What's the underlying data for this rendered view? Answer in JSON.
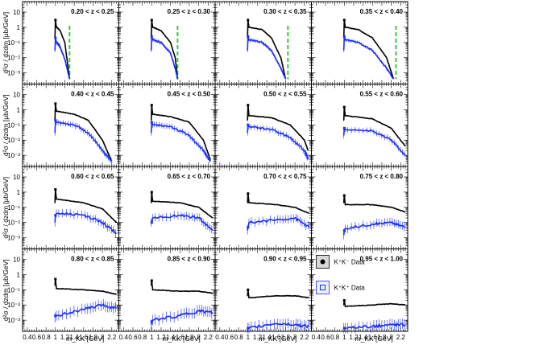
{
  "chart_data": {
    "type": "line",
    "layout": {
      "rows": 4,
      "cols": 4
    },
    "ylabel": "d²σ / dzdm [μb/GeV]",
    "xlabel": "m_KK [GeV]",
    "x_ticks": [
      "0.4",
      "0.6",
      "0.8",
      "1",
      "1.2",
      "1.4",
      "1.6",
      "1.8",
      "2",
      "2.2"
    ],
    "xlim": [
      0.3,
      2.35
    ],
    "y_scale": "log",
    "ylim": [
      0.0003,
      30
    ],
    "y_ticks": [
      "10⁻³",
      "10⁻²",
      "10⁻¹",
      "1",
      "10"
    ],
    "legend": {
      "position": "bottom-right panel",
      "entries": [
        {
          "label": "K⁺K⁻ Data",
          "color": "#000000",
          "marker": "circle"
        },
        {
          "label": "K⁺K⁺ Data",
          "color": "#1a2cff",
          "marker": "square"
        }
      ]
    },
    "panels": [
      {
        "z": "0.20 < z < 0.25",
        "cut": 1.3,
        "end": 1.3,
        "series": [
          {
            "name": "K⁺K⁻ Data",
            "color": "#000000",
            "x": [
              0.99,
              1.0,
              1.02,
              1.03,
              1.1,
              1.2,
              1.3
            ],
            "y": [
              0.2,
              3.0,
              1.0,
              1.0,
              0.6,
              0.1,
              0.0004
            ]
          },
          {
            "name": "K⁺K⁺ Data",
            "color": "#1a2cff",
            "x": [
              0.99,
              1.0,
              1.02,
              1.03,
              1.1,
              1.2,
              1.3
            ],
            "y": [
              0.03,
              0.2,
              0.1,
              0.1,
              0.05,
              0.008,
              0.0004
            ]
          }
        ]
      },
      {
        "z": "0.25 < z < 0.30",
        "cut": 1.55,
        "end": 1.55,
        "series": [
          {
            "name": "K⁺K⁻ Data",
            "color": "#000000",
            "x": [
              0.99,
              1.0,
              1.02,
              1.03,
              1.2,
              1.4,
              1.5,
              1.55
            ],
            "y": [
              0.2,
              3.0,
              1.0,
              1.0,
              0.6,
              0.1,
              0.01,
              0.0004
            ]
          },
          {
            "name": "K⁺K⁺ Data",
            "color": "#1a2cff",
            "x": [
              0.99,
              1.0,
              1.02,
              1.03,
              1.2,
              1.4,
              1.5,
              1.55
            ],
            "y": [
              0.03,
              0.25,
              0.15,
              0.15,
              0.1,
              0.02,
              0.002,
              0.0004
            ]
          }
        ]
      },
      {
        "z": "0.30 < z < 0.35",
        "cut": 1.85,
        "end": 1.8,
        "series": [
          {
            "name": "K⁺K⁻ Data",
            "color": "#000000",
            "x": [
              0.99,
              1.0,
              1.02,
              1.03,
              1.3,
              1.5,
              1.7,
              1.8
            ],
            "y": [
              0.2,
              3.0,
              1.0,
              1.0,
              0.7,
              0.2,
              0.01,
              0.0004
            ]
          },
          {
            "name": "K⁺K⁺ Data",
            "color": "#1a2cff",
            "x": [
              0.99,
              1.0,
              1.02,
              1.03,
              1.3,
              1.5,
              1.7,
              1.8
            ],
            "y": [
              0.03,
              0.25,
              0.15,
              0.15,
              0.1,
              0.03,
              0.002,
              0.0004
            ]
          }
        ]
      },
      {
        "z": "0.35 < z < 0.40",
        "cut": 2.1,
        "end": 2.05,
        "series": [
          {
            "name": "K⁺K⁻ Data",
            "color": "#000000",
            "x": [
              0.99,
              1.0,
              1.02,
              1.03,
              1.3,
              1.6,
              1.9,
              2.05
            ],
            "y": [
              0.2,
              3.0,
              1.0,
              1.0,
              0.7,
              0.2,
              0.01,
              0.0004
            ]
          },
          {
            "name": "K⁺K⁺ Data",
            "color": "#1a2cff",
            "x": [
              0.99,
              1.0,
              1.02,
              1.03,
              1.3,
              1.6,
              1.9,
              2.05
            ],
            "y": [
              0.03,
              0.25,
              0.15,
              0.15,
              0.1,
              0.03,
              0.002,
              0.0004
            ]
          }
        ]
      },
      {
        "z": "0.40 < z < 0.45",
        "end": 2.2,
        "series": [
          {
            "name": "K⁺K⁻ Data",
            "color": "#000000",
            "x": [
              0.99,
              1.0,
              1.02,
              1.03,
              1.4,
              1.7,
              2.0,
              2.2
            ],
            "y": [
              0.2,
              2.5,
              0.8,
              0.8,
              0.5,
              0.2,
              0.01,
              0.0004
            ]
          },
          {
            "name": "K⁺K⁺ Data",
            "color": "#1a2cff",
            "x": [
              0.99,
              1.0,
              1.02,
              1.03,
              1.4,
              1.7,
              2.0,
              2.2
            ],
            "y": [
              0.03,
              0.2,
              0.15,
              0.15,
              0.1,
              0.03,
              0.002,
              0.0004
            ]
          }
        ]
      },
      {
        "z": "0.45 < z < 0.50",
        "end": 2.25,
        "series": [
          {
            "name": "K⁺K⁻ Data",
            "color": "#000000",
            "x": [
              0.99,
              1.0,
              1.02,
              1.03,
              1.4,
              1.8,
              2.1,
              2.25
            ],
            "y": [
              0.2,
              2.0,
              0.5,
              0.5,
              0.35,
              0.15,
              0.01,
              0.0005
            ]
          },
          {
            "name": "K⁺K⁺ Data",
            "color": "#1a2cff",
            "x": [
              0.99,
              1.0,
              1.02,
              1.03,
              1.4,
              1.8,
              2.1,
              2.25
            ],
            "y": [
              0.03,
              0.15,
              0.1,
              0.1,
              0.08,
              0.02,
              0.002,
              0.0004
            ]
          }
        ]
      },
      {
        "z": "0.50 < z < 0.55",
        "end": 2.28,
        "series": [
          {
            "name": "K⁺K⁻ Data",
            "color": "#000000",
            "x": [
              0.99,
              1.0,
              1.02,
              1.03,
              1.5,
              1.9,
              2.2,
              2.28
            ],
            "y": [
              0.2,
              2.0,
              0.4,
              0.4,
              0.3,
              0.1,
              0.01,
              0.002
            ]
          },
          {
            "name": "K⁺K⁺ Data",
            "color": "#1a2cff",
            "x": [
              0.99,
              1.0,
              1.02,
              1.03,
              1.5,
              1.9,
              2.2,
              2.28
            ],
            "y": [
              0.03,
              0.1,
              0.08,
              0.08,
              0.05,
              0.015,
              0.002,
              0.0006
            ]
          }
        ]
      },
      {
        "z": "0.55 < z < 0.60",
        "end": 2.3,
        "series": [
          {
            "name": "K⁺K⁻ Data",
            "color": "#000000",
            "x": [
              0.99,
              1.0,
              1.02,
              1.03,
              1.6,
              2.0,
              2.3
            ],
            "y": [
              0.2,
              1.5,
              0.4,
              0.4,
              0.25,
              0.06,
              0.004
            ]
          },
          {
            "name": "K⁺K⁺ Data",
            "color": "#1a2cff",
            "x": [
              0.99,
              1.0,
              1.02,
              1.03,
              1.6,
              2.0,
              2.3
            ],
            "y": [
              0.02,
              0.06,
              0.05,
              0.05,
              0.04,
              0.01,
              0.001
            ]
          }
        ]
      },
      {
        "z": "0.60 < z < 0.65",
        "end": 2.3,
        "series": [
          {
            "name": "K⁺K⁻ Data",
            "color": "#000000",
            "x": [
              0.99,
              1.0,
              1.02,
              1.03,
              1.6,
              2.0,
              2.3
            ],
            "y": [
              0.2,
              1.5,
              0.35,
              0.35,
              0.2,
              0.08,
              0.01
            ]
          },
          {
            "name": "K⁺K⁺ Data",
            "color": "#1a2cff",
            "x": [
              0.99,
              1.0,
              1.02,
              1.03,
              1.6,
              2.0,
              2.3
            ],
            "y": [
              0.01,
              0.03,
              0.04,
              0.04,
              0.03,
              0.01,
              0.002
            ]
          }
        ]
      },
      {
        "z": "0.65 < z < 0.70",
        "end": 2.3,
        "series": [
          {
            "name": "K⁺K⁻ Data",
            "color": "#000000",
            "x": [
              0.99,
              1.0,
              1.02,
              1.03,
              1.6,
              2.0,
              2.3
            ],
            "y": [
              0.2,
              1.0,
              0.25,
              0.25,
              0.2,
              0.1,
              0.02
            ]
          },
          {
            "name": "K⁺K⁺ Data",
            "color": "#1a2cff",
            "x": [
              0.99,
              1.0,
              1.02,
              1.03,
              1.6,
              2.0,
              2.3
            ],
            "y": [
              0.01,
              0.01,
              0.02,
              0.02,
              0.03,
              0.02,
              0.003
            ]
          }
        ]
      },
      {
        "z": "0.70 < z < 0.75",
        "end": 2.3,
        "series": [
          {
            "name": "K⁺K⁻ Data",
            "color": "#000000",
            "x": [
              0.99,
              1.0,
              1.02,
              1.03,
              1.6,
              2.0,
              2.3
            ],
            "y": [
              0.2,
              0.8,
              0.2,
              0.2,
              0.15,
              0.1,
              0.04
            ]
          },
          {
            "name": "K⁺K⁺ Data",
            "color": "#1a2cff",
            "x": [
              0.99,
              1.0,
              1.02,
              1.03,
              1.6,
              2.0,
              2.3
            ],
            "y": [
              0.003,
              0.005,
              0.01,
              0.01,
              0.015,
              0.02,
              0.005
            ]
          }
        ]
      },
      {
        "z": "0.75 < z < 0.80",
        "end": 2.3,
        "series": [
          {
            "name": "K⁺K⁻ Data",
            "color": "#000000",
            "x": [
              0.99,
              1.0,
              1.02,
              1.03,
              1.6,
              2.0,
              2.3
            ],
            "y": [
              0.2,
              0.6,
              0.15,
              0.15,
              0.15,
              0.1,
              0.05
            ]
          },
          {
            "name": "K⁺K⁺ Data",
            "color": "#1a2cff",
            "x": [
              0.99,
              1.0,
              1.02,
              1.03,
              1.6,
              2.0,
              2.3
            ],
            "y": [
              0.0015,
              0.003,
              0.004,
              0.004,
              0.008,
              0.01,
              0.005
            ]
          }
        ]
      },
      {
        "z": "0.80 < z < 0.85",
        "end": 2.3,
        "series": [
          {
            "name": "K⁺K⁻ Data",
            "color": "#000000",
            "x": [
              0.99,
              1.0,
              1.02,
              1.03,
              1.6,
              2.0,
              2.3
            ],
            "y": [
              0.2,
              0.5,
              0.12,
              0.12,
              0.1,
              0.08,
              0.05
            ]
          },
          {
            "name": "K⁺K⁺ Data",
            "color": "#1a2cff",
            "x": [
              0.99,
              1.0,
              1.02,
              1.03,
              1.6,
              2.0,
              2.3
            ],
            "y": [
              0.0015,
              0.002,
              0.002,
              0.002,
              0.005,
              0.01,
              0.006
            ]
          }
        ]
      },
      {
        "z": "0.85 < z < 0.90",
        "end": 2.3,
        "series": [
          {
            "name": "K⁺K⁻ Data",
            "color": "#000000",
            "x": [
              0.99,
              1.0,
              1.02,
              1.03,
              1.6,
              2.0,
              2.3
            ],
            "y": [
              0.2,
              0.4,
              0.1,
              0.1,
              0.08,
              0.08,
              0.06
            ]
          },
          {
            "name": "K⁺K⁺ Data",
            "color": "#1a2cff",
            "x": [
              0.99,
              1.0,
              1.02,
              1.03,
              1.6,
              2.0,
              2.3
            ],
            "y": [
              0.0005,
              0.0008,
              0.001,
              0.001,
              0.002,
              0.004,
              0.003
            ]
          }
        ]
      },
      {
        "z": "0.90 < z < 0.95",
        "end": 2.3,
        "series": [
          {
            "name": "K⁺K⁻ Data",
            "color": "#000000",
            "x": [
              0.99,
              1.0,
              1.02,
              1.03,
              1.6,
              2.0,
              2.3
            ],
            "y": [
              0.04,
              0.1,
              0.03,
              0.03,
              0.04,
              0.04,
              0.03
            ]
          },
          {
            "name": "K⁺K⁺ Data",
            "color": "#1a2cff",
            "x": [
              0.99,
              1.0,
              1.02,
              1.03,
              1.6,
              2.0,
              2.3
            ],
            "y": [
              0.0003,
              0.0003,
              0.0003,
              0.0003,
              0.0006,
              0.0005,
              0.0004
            ]
          }
        ]
      },
      {
        "z": "0.95 < z < 1.00",
        "end": 2.3,
        "series": [
          {
            "name": "K⁺K⁻ Data",
            "color": "#000000",
            "x": [
              0.99,
              1.0,
              1.02,
              1.03,
              1.6,
              2.0,
              2.3
            ],
            "y": [
              0.01,
              0.02,
              0.008,
              0.008,
              0.01,
              0.012,
              0.01
            ]
          },
          {
            "name": "K⁺K⁺ Data",
            "color": "#1a2cff",
            "x": [
              0.99,
              1.0,
              1.02,
              1.03,
              1.6,
              2.0,
              2.3
            ],
            "y": [
              0.0003,
              0.0003,
              0.0003,
              0.0003,
              0.0004,
              0.0005,
              0.0005
            ]
          }
        ]
      }
    ]
  }
}
